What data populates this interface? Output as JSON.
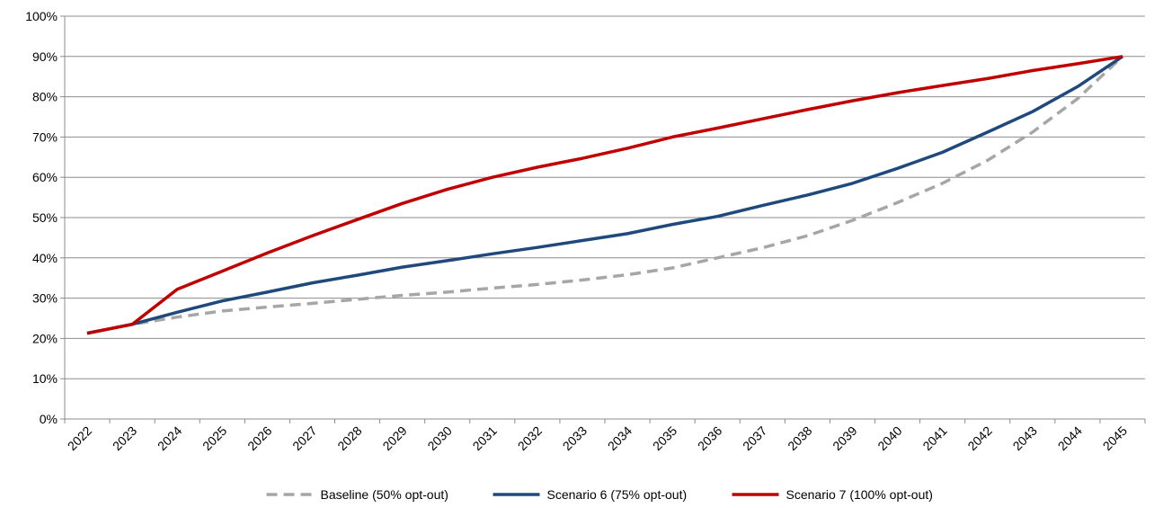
{
  "chart_data": {
    "type": "line",
    "x": [
      "2022",
      "2023",
      "2024",
      "2025",
      "2026",
      "2027",
      "2028",
      "2029",
      "2030",
      "2031",
      "2032",
      "2033",
      "2034",
      "2035",
      "2036",
      "2037",
      "2038",
      "2039",
      "2040",
      "2041",
      "2042",
      "2043",
      "2044",
      "2045"
    ],
    "ylim": [
      0,
      1
    ],
    "yticks": [
      "0%",
      "10%",
      "20%",
      "30%",
      "40%",
      "50%",
      "60%",
      "70%",
      "80%",
      "90%",
      "100%"
    ],
    "grid": true,
    "legend_position": "bottom",
    "series": [
      {
        "name": "Baseline (50% opt-out)",
        "style": "dashed",
        "color": "#a6a6a6",
        "values": [
          0.213,
          0.235,
          0.253,
          0.268,
          0.278,
          0.287,
          0.297,
          0.307,
          0.315,
          0.325,
          0.334,
          0.345,
          0.358,
          0.375,
          0.4,
          0.425,
          0.455,
          0.493,
          0.537,
          0.585,
          0.642,
          0.712,
          0.795,
          0.9
        ]
      },
      {
        "name": "Scenario 6 (75% opt-out)",
        "style": "solid",
        "color": "#1f497d",
        "values": [
          0.213,
          0.235,
          0.265,
          0.293,
          0.315,
          0.338,
          0.357,
          0.377,
          0.393,
          0.41,
          0.426,
          0.443,
          0.46,
          0.483,
          0.503,
          0.53,
          0.556,
          0.585,
          0.622,
          0.662,
          0.712,
          0.763,
          0.825,
          0.9
        ]
      },
      {
        "name": "Scenario 7 (100% opt-out)",
        "style": "solid",
        "color": "#c00000",
        "values": [
          0.213,
          0.235,
          0.322,
          0.367,
          0.412,
          0.455,
          0.495,
          0.535,
          0.57,
          0.6,
          0.625,
          0.647,
          0.672,
          0.7,
          0.722,
          0.745,
          0.768,
          0.79,
          0.81,
          0.828,
          0.845,
          0.865,
          0.882,
          0.9
        ]
      }
    ]
  }
}
